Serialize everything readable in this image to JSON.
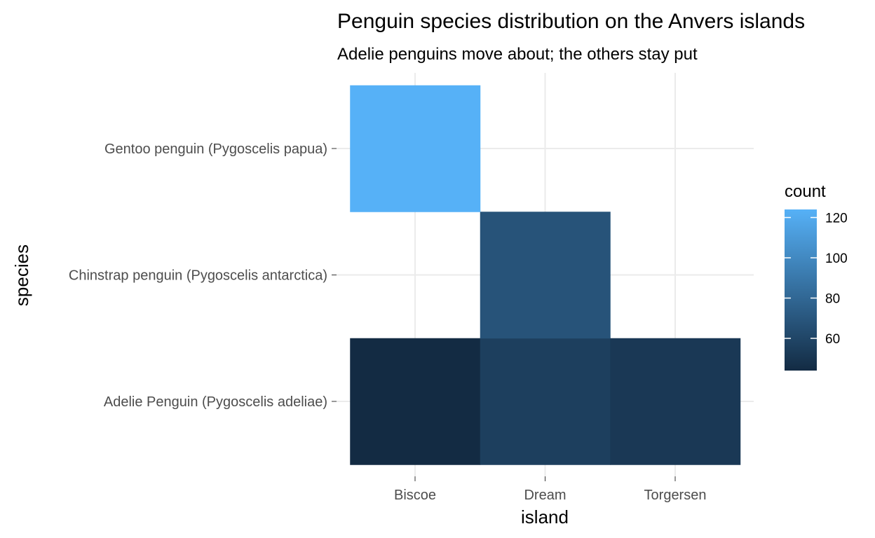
{
  "chart_data": {
    "type": "heatmap",
    "title": "Penguin species distribution on the Anvers islands",
    "subtitle": "Adelie penguins move about; the others stay put",
    "xlabel": "island",
    "ylabel": "species",
    "x_categories": [
      "Biscoe",
      "Dream",
      "Torgersen"
    ],
    "y_categories": [
      "Adelie Penguin (Pygoscelis adeliae)",
      "Chinstrap penguin (Pygoscelis antarctica)",
      "Gentoo penguin (Pygoscelis papua)"
    ],
    "cells": [
      {
        "x": "Biscoe",
        "y": "Adelie Penguin (Pygoscelis adeliae)",
        "value": 44
      },
      {
        "x": "Dream",
        "y": "Adelie Penguin (Pygoscelis adeliae)",
        "value": 56
      },
      {
        "x": "Torgersen",
        "y": "Adelie Penguin (Pygoscelis adeliae)",
        "value": 52
      },
      {
        "x": "Dream",
        "y": "Chinstrap penguin (Pygoscelis antarctica)",
        "value": 68
      },
      {
        "x": "Biscoe",
        "y": "Gentoo penguin (Pygoscelis papua)",
        "value": 124
      }
    ],
    "legend": {
      "title": "count",
      "ticks": [
        60,
        80,
        100,
        120
      ],
      "range": [
        44,
        124
      ],
      "low_color": "#132b43",
      "high_color": "#56b1f7",
      "placement": "right"
    },
    "grid": true
  }
}
